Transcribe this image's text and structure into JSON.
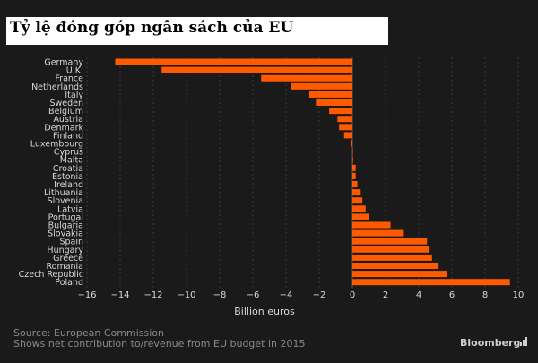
{
  "title": "Tỷ lệ đóng góp ngân sách của EU",
  "source": "Source: European Commission",
  "note": "Shows net contribution to/revenue from EU budget in 2015",
  "brand": "Bloomberg",
  "brand_icon": "bloomberg-chart-icon",
  "colors": {
    "background": "#1a1a1a",
    "bar": "#ff5a00",
    "text": "#d9d9d9",
    "muted": "#8a8a8a",
    "grid": "#3a3a3a"
  },
  "chart_data": {
    "type": "bar",
    "orientation": "horizontal",
    "xlabel": "Billion euros",
    "xlim": [
      -16,
      10
    ],
    "xticks": [
      -16,
      -14,
      -12,
      -10,
      -8,
      -6,
      -4,
      -2,
      0,
      2,
      4,
      6,
      8,
      10
    ],
    "categories": [
      "Germany",
      "U.K.",
      "France",
      "Netherlands",
      "Italy",
      "Sweden",
      "Belgium",
      "Austria",
      "Denmark",
      "Finland",
      "Luxembourg",
      "Cyprus",
      "Malta",
      "Croatia",
      "Estonia",
      "Ireland",
      "Lithuania",
      "Slovenia",
      "Latvia",
      "Portugal",
      "Bulgaria",
      "Slovakia",
      "Spain",
      "Hungary",
      "Greece",
      "Romania",
      "Czech Republic",
      "Poland"
    ],
    "values": [
      -14.3,
      -11.5,
      -5.5,
      -3.7,
      -2.6,
      -2.2,
      -1.4,
      -0.9,
      -0.8,
      -0.5,
      -0.1,
      0.02,
      0.04,
      0.2,
      0.2,
      0.3,
      0.5,
      0.6,
      0.8,
      1.0,
      2.3,
      3.1,
      4.5,
      4.6,
      4.8,
      5.2,
      5.7,
      9.5
    ],
    "grid": "vertical"
  }
}
